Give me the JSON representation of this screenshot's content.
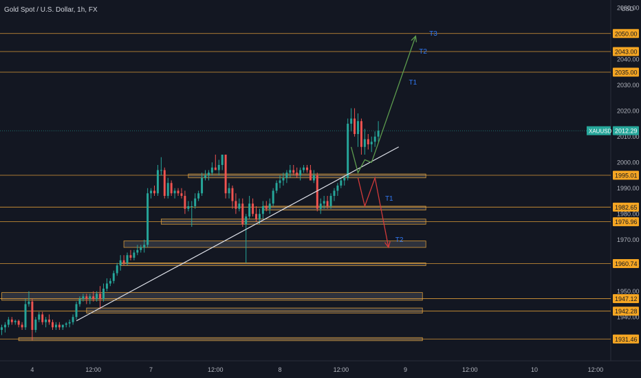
{
  "header": {
    "title": "Gold Spot / U.S. Dollar, 1h, FX",
    "currency": "USD"
  },
  "chart_data": {
    "type": "candlestick",
    "symbol": "XAUUSD",
    "ylim": [
      1923,
      2063
    ],
    "y_ticks": [
      1940,
      1950,
      1960,
      1970,
      1980,
      1990,
      2000,
      2010,
      2020,
      2030,
      2040,
      2060
    ],
    "y_tick_labels": [
      "1940.00",
      "1950.00",
      "1960.00",
      "1970.00",
      "1980.00",
      "1990.00",
      "2000.00",
      "2010.00",
      "2020.00",
      "2030.00",
      "2040.00",
      "2060.00"
    ],
    "x_ticks": [
      {
        "label": "4",
        "bar": 9
      },
      {
        "label": "12:00",
        "bar": 27
      },
      {
        "label": "7",
        "bar": 44
      },
      {
        "label": "12:00",
        "bar": 63
      },
      {
        "label": "8",
        "bar": 82
      },
      {
        "label": "12:00",
        "bar": 100
      },
      {
        "label": "9",
        "bar": 119
      },
      {
        "label": "12:00",
        "bar": 138
      },
      {
        "label": "10",
        "bar": 157
      },
      {
        "label": "12:00",
        "bar": 175
      }
    ],
    "last_price": {
      "label": "XAUUSD",
      "value": 2012.29,
      "color": "#26a69a"
    },
    "level_lines": [
      {
        "value": 2050.0,
        "label": "2050.00"
      },
      {
        "value": 2043.0,
        "label": "2043.00"
      },
      {
        "value": 2035.0,
        "label": "2035.00"
      },
      {
        "value": 1995.01,
        "label": "1995.01"
      },
      {
        "value": 1982.65,
        "label": "1982.65"
      },
      {
        "value": 1976.96,
        "label": "1976.96"
      },
      {
        "value": 1960.74,
        "label": "1960.74"
      },
      {
        "value": 1947.12,
        "label": "1947.12"
      },
      {
        "value": 1942.28,
        "label": "1942.28"
      },
      {
        "value": 1931.46,
        "label": "1931.46"
      }
    ],
    "zones": [
      {
        "x1": 55,
        "x2": 125,
        "top": 1995.5,
        "bottom": 1994.0
      },
      {
        "x1": 77,
        "x2": 125,
        "top": 1983.0,
        "bottom": 1981.5
      },
      {
        "x1": 47,
        "x2": 125,
        "top": 1978.0,
        "bottom": 1976.0
      },
      {
        "x1": 36,
        "x2": 125,
        "top": 1969.5,
        "bottom": 1967.0
      },
      {
        "x1": 35,
        "x2": 125,
        "top": 1961.0,
        "bottom": 1960.5
      },
      {
        "x1": 0,
        "x2": 124,
        "top": 1949.5,
        "bottom": 1946.5
      },
      {
        "x1": 25,
        "x2": 124,
        "top": 1943.5,
        "bottom": 1941.5
      },
      {
        "x1": 5,
        "x2": 124,
        "top": 1932.0,
        "bottom": 1930.8
      }
    ],
    "trendline": {
      "from": {
        "bar": 22,
        "price": 1938.5
      },
      "to": {
        "bar": 117,
        "price": 2006
      }
    },
    "bullish_path": [
      {
        "bar": 103,
        "price": 2006
      },
      {
        "bar": 105,
        "price": 1996
      },
      {
        "bar": 107,
        "price": 2001
      },
      {
        "bar": 109,
        "price": 2000
      },
      {
        "bar": 122,
        "price": 2049
      }
    ],
    "bearish_path": [
      {
        "bar": 105,
        "price": 1994
      },
      {
        "bar": 107,
        "price": 1983
      },
      {
        "bar": 110,
        "price": 1994
      },
      {
        "bar": 114,
        "price": 1967
      }
    ],
    "path_labels": [
      {
        "text": "T3",
        "bar": 126,
        "price": 2050,
        "color": "#3179f5"
      },
      {
        "text": "T2",
        "bar": 123,
        "price": 2043,
        "color": "#3179f5"
      },
      {
        "text": "T1",
        "bar": 120,
        "price": 2031,
        "color": "#3179f5"
      },
      {
        "text": "T1",
        "bar": 113,
        "price": 1986,
        "color": "#3179f5"
      },
      {
        "text": "T2",
        "bar": 116,
        "price": 1970,
        "color": "#3179f5"
      }
    ],
    "bar_count": 180,
    "candles": [
      [
        1935,
        1937,
        1933,
        1936
      ],
      [
        1936,
        1938,
        1934,
        1937
      ],
      [
        1937,
        1940,
        1936,
        1939
      ],
      [
        1939,
        1940,
        1937,
        1938
      ],
      [
        1938,
        1939,
        1937,
        1938.5
      ],
      [
        1938.5,
        1939,
        1936,
        1937
      ],
      [
        1937,
        1938,
        1935,
        1936
      ],
      [
        1936,
        1947,
        1935,
        1945
      ],
      [
        1945,
        1950,
        1944,
        1946
      ],
      [
        1946,
        1947,
        1931,
        1935
      ],
      [
        1935,
        1940,
        1934,
        1939
      ],
      [
        1939,
        1942,
        1938,
        1941
      ],
      [
        1941,
        1942,
        1937,
        1938
      ],
      [
        1938,
        1940,
        1936,
        1939
      ],
      [
        1939,
        1941,
        1937,
        1938
      ],
      [
        1938,
        1939,
        1935,
        1936
      ],
      [
        1936,
        1938,
        1935,
        1937
      ],
      [
        1937,
        1938,
        1935,
        1936
      ],
      [
        1936,
        1937,
        1935,
        1937
      ],
      [
        1937,
        1938,
        1936,
        1937.5
      ],
      [
        1937.5,
        1939,
        1936,
        1938
      ],
      [
        1938,
        1941,
        1937,
        1940
      ],
      [
        1940,
        1946,
        1939,
        1945
      ],
      [
        1945,
        1948,
        1944,
        1947
      ],
      [
        1947,
        1949,
        1946,
        1948
      ],
      [
        1948,
        1949,
        1945,
        1947
      ],
      [
        1947,
        1949,
        1945,
        1948
      ],
      [
        1948,
        1950,
        1946,
        1947
      ],
      [
        1947,
        1950,
        1946,
        1949
      ],
      [
        1949,
        1952,
        1943,
        1947
      ],
      [
        1947,
        1953,
        1946,
        1951
      ],
      [
        1951,
        1955,
        1950,
        1953
      ],
      [
        1953,
        1955,
        1952,
        1954
      ],
      [
        1954,
        1958,
        1953,
        1957
      ],
      [
        1957,
        1961,
        1956,
        1960
      ],
      [
        1960,
        1964,
        1958,
        1962
      ],
      [
        1962,
        1964,
        1960,
        1961
      ],
      [
        1961,
        1965,
        1960,
        1964
      ],
      [
        1964,
        1966,
        1962,
        1963
      ],
      [
        1963,
        1966,
        1962,
        1965
      ],
      [
        1965,
        1968,
        1964,
        1966
      ],
      [
        1966,
        1968,
        1965,
        1967
      ],
      [
        1967,
        1970,
        1965,
        1968
      ],
      [
        1968,
        1990,
        1967,
        1988
      ],
      [
        1988,
        1990,
        1986,
        1989
      ],
      [
        1989,
        1991,
        1987,
        1988
      ],
      [
        1988,
        1999,
        1987,
        1997
      ],
      [
        1997,
        2002,
        1995,
        1997
      ],
      [
        1997,
        1998,
        1986,
        1987
      ],
      [
        1987,
        1994,
        1986,
        1992
      ],
      [
        1992,
        1993,
        1987,
        1988
      ],
      [
        1988,
        1990,
        1986,
        1989
      ],
      [
        1989,
        1990,
        1987,
        1988
      ],
      [
        1988,
        1990,
        1986,
        1987
      ],
      [
        1987,
        1989,
        1980,
        1982
      ],
      [
        1982,
        1985,
        1981,
        1983
      ],
      [
        1983,
        1985,
        1975,
        1983
      ],
      [
        1983,
        1988,
        1982,
        1986
      ],
      [
        1986,
        1989,
        1985,
        1988
      ],
      [
        1988,
        1996,
        1987,
        1994
      ],
      [
        1994,
        1997,
        1993,
        1995
      ],
      [
        1995,
        1997,
        1993,
        1996
      ],
      [
        1996,
        2000,
        1995,
        1998
      ],
      [
        1998,
        2003,
        1997,
        1997
      ],
      [
        1997,
        2001,
        1995,
        1999
      ],
      [
        1999,
        2003,
        1997,
        2003
      ],
      [
        2003,
        2003,
        1986,
        1988
      ],
      [
        1988,
        1992,
        1986,
        1990
      ],
      [
        1990,
        1991,
        1982,
        1985
      ],
      [
        1985,
        1988,
        1980,
        1982
      ],
      [
        1982,
        1986,
        1981,
        1984
      ],
      [
        1984,
        1986,
        1975,
        1976
      ],
      [
        1976,
        1980,
        1961,
        1979
      ],
      [
        1979,
        1987,
        1978,
        1984
      ],
      [
        1984,
        1986,
        1979,
        1980
      ],
      [
        1980,
        1983,
        1977,
        1978
      ],
      [
        1978,
        1982,
        1976,
        1980
      ],
      [
        1980,
        1985,
        1978,
        1983
      ],
      [
        1983,
        1985,
        1981,
        1982
      ],
      [
        1982,
        1986,
        1980,
        1984
      ],
      [
        1984,
        1990,
        1983,
        1989
      ],
      [
        1989,
        1993,
        1988,
        1992
      ],
      [
        1992,
        1995,
        1990,
        1993
      ],
      [
        1993,
        1996,
        1991,
        1994
      ],
      [
        1994,
        1997,
        1992,
        1996
      ],
      [
        1996,
        1999,
        1994,
        1997
      ],
      [
        1997,
        1999,
        1995,
        1996
      ],
      [
        1996,
        1998,
        1994,
        1995
      ],
      [
        1995,
        1998,
        1993,
        1997
      ],
      [
        1997,
        1999,
        1996,
        1998
      ],
      [
        1998,
        1999,
        1996,
        1997
      ],
      [
        1997,
        1999,
        1993,
        1993
      ],
      [
        1993,
        1997,
        1992,
        1995
      ],
      [
        1995,
        1996,
        1981,
        1982
      ],
      [
        1982,
        1986,
        1980,
        1984
      ],
      [
        1984,
        1987,
        1982,
        1985
      ],
      [
        1985,
        1987,
        1982,
        1983
      ],
      [
        1983,
        1988,
        1982,
        1987
      ],
      [
        1987,
        1990,
        1985,
        1989
      ],
      [
        1989,
        1992,
        1987,
        1991
      ],
      [
        1991,
        1994,
        1990,
        1993
      ],
      [
        1993,
        1995,
        1991,
        1994
      ],
      [
        1994,
        2017,
        1993,
        2015
      ],
      [
        2015,
        2021,
        2012,
        2017
      ],
      [
        2017,
        2021,
        2010,
        2011
      ],
      [
        2011,
        2019,
        2006,
        2016
      ],
      [
        2016,
        2017,
        2003,
        2006
      ],
      [
        2006,
        2013,
        2003,
        2009
      ],
      [
        2009,
        2011,
        2005,
        2007
      ],
      [
        2007,
        2010,
        2004,
        2008
      ],
      [
        2008,
        2012,
        2006,
        2010
      ],
      [
        2010,
        2016,
        2008,
        2012.29
      ]
    ]
  }
}
